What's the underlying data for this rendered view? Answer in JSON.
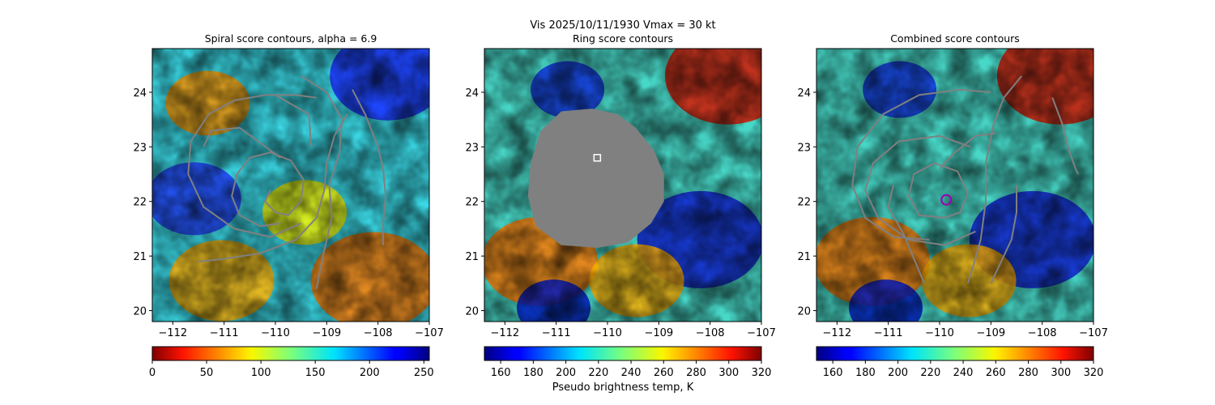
{
  "figure": {
    "suptitle": "Vis  2025/10/11/1930    Vmax = 30 kt"
  },
  "chart_data": [
    {
      "type": "heatmap",
      "title": "Spiral score contours, alpha =  6.9",
      "xlim": [
        -112.4,
        -107.0
      ],
      "ylim": [
        19.8,
        24.8
      ],
      "xticks": [
        -112,
        -111,
        -110,
        -109,
        -108,
        -107
      ],
      "yticks": [
        20,
        21,
        22,
        23,
        24
      ],
      "xtick_labels": [
        "−112",
        "−111",
        "−110",
        "−109",
        "−108",
        "−107"
      ],
      "ytick_labels": [
        "20",
        "21",
        "22",
        "23",
        "24"
      ],
      "colorbar": {
        "cmap": "jet_r",
        "range": [
          0,
          255
        ],
        "ticks": [
          0,
          50,
          100,
          150,
          200,
          250
        ],
        "tick_labels": [
          "0",
          "50",
          "100",
          "150",
          "200",
          "250"
        ],
        "label": ""
      },
      "contour_color": "#808080",
      "contours": [
        [
          [
            -109.9,
            21.6
          ],
          [
            -110.3,
            21.55
          ],
          [
            -110.7,
            21.75
          ],
          [
            -110.85,
            22.1
          ],
          [
            -110.75,
            22.5
          ],
          [
            -110.5,
            22.8
          ],
          [
            -110.1,
            22.9
          ],
          [
            -109.7,
            22.75
          ],
          [
            -109.45,
            22.4
          ],
          [
            -109.5,
            22.0
          ],
          [
            -109.75,
            21.75
          ],
          [
            -110.0,
            21.8
          ],
          [
            -110.2,
            22.0
          ],
          [
            -110.1,
            22.2
          ]
        ],
        [
          [
            -109.2,
            23.9
          ],
          [
            -109.6,
            23.95
          ],
          [
            -110.2,
            23.95
          ],
          [
            -110.8,
            23.85
          ],
          [
            -111.3,
            23.6
          ],
          [
            -111.65,
            23.1
          ],
          [
            -111.7,
            22.5
          ],
          [
            -111.4,
            21.9
          ],
          [
            -110.8,
            21.5
          ],
          [
            -110.1,
            21.35
          ],
          [
            -109.5,
            21.6
          ]
        ],
        [
          [
            -108.6,
            23.6
          ],
          [
            -108.85,
            23.2
          ],
          [
            -109.0,
            22.7
          ],
          [
            -109.05,
            22.2
          ],
          [
            -109.2,
            21.7
          ],
          [
            -109.6,
            21.3
          ],
          [
            -110.3,
            21.05
          ],
          [
            -111.0,
            20.95
          ],
          [
            -111.5,
            20.9
          ]
        ],
        [
          [
            -109.9,
            22.8
          ],
          [
            -110.7,
            23.35
          ],
          [
            -111.25,
            23.3
          ],
          [
            -111.4,
            23.0
          ]
        ],
        [
          [
            -109.3,
            23.0
          ],
          [
            -109.35,
            23.6
          ],
          [
            -110.0,
            23.95
          ]
        ],
        [
          [
            -109.5,
            24.3
          ],
          [
            -109.0,
            24.0
          ],
          [
            -108.7,
            23.5
          ],
          [
            -108.75,
            22.9
          ],
          [
            -108.95,
            22.3
          ],
          [
            -108.9,
            21.7
          ],
          [
            -109.05,
            21.1
          ],
          [
            -109.2,
            20.4
          ]
        ],
        [
          [
            -108.5,
            24.05
          ],
          [
            -108.25,
            23.6
          ],
          [
            -108.0,
            23.0
          ],
          [
            -107.9,
            22.6
          ],
          [
            -107.85,
            22.1
          ],
          [
            -107.9,
            21.6
          ],
          [
            -107.9,
            21.2
          ]
        ]
      ]
    },
    {
      "type": "heatmap",
      "title": "Ring score contours",
      "xlim": [
        -112.4,
        -107.0
      ],
      "ylim": [
        19.8,
        24.8
      ],
      "xticks": [
        -112,
        -111,
        -110,
        -109,
        -108,
        -107
      ],
      "yticks": [
        20,
        21,
        22,
        23,
        24
      ],
      "xtick_labels": [
        "−112",
        "−111",
        "−110",
        "−109",
        "−108",
        "−107"
      ],
      "ytick_labels": [
        "20",
        "21",
        "22",
        "23",
        "24"
      ],
      "colorbar": {
        "cmap": "jet",
        "range": [
          150,
          320
        ],
        "ticks": [
          160,
          180,
          200,
          220,
          240,
          260,
          280,
          300,
          320
        ],
        "tick_labels": [
          "160",
          "180",
          "200",
          "220",
          "240",
          "260",
          "280",
          "300",
          "320"
        ],
        "label": "Pseudo brightness temp, K"
      },
      "masked_region_color": "#808080",
      "masked_region": [
        [
          -110.9,
          23.65
        ],
        [
          -110.3,
          23.7
        ],
        [
          -109.8,
          23.6
        ],
        [
          -109.45,
          23.35
        ],
        [
          -109.1,
          22.95
        ],
        [
          -108.9,
          22.5
        ],
        [
          -108.9,
          22.0
        ],
        [
          -109.15,
          21.6
        ],
        [
          -109.6,
          21.25
        ],
        [
          -110.2,
          21.15
        ],
        [
          -110.9,
          21.2
        ],
        [
          -111.4,
          21.55
        ],
        [
          -111.55,
          22.1
        ],
        [
          -111.5,
          22.7
        ],
        [
          -111.3,
          23.3
        ]
      ],
      "marker": {
        "shape": "square",
        "x": -110.2,
        "y": 22.8,
        "color": "#ffffff"
      }
    },
    {
      "type": "heatmap",
      "title": "Combined score contours",
      "xlim": [
        -112.4,
        -107.0
      ],
      "ylim": [
        19.8,
        24.8
      ],
      "xticks": [
        -112,
        -111,
        -110,
        -109,
        -108,
        -107
      ],
      "yticks": [
        20,
        21,
        22,
        23,
        24
      ],
      "xtick_labels": [
        "−112",
        "−111",
        "−110",
        "−109",
        "−108",
        "−107"
      ],
      "ytick_labels": [
        "20",
        "21",
        "22",
        "23",
        "24"
      ],
      "colorbar": {
        "cmap": "jet",
        "range": [
          150,
          320
        ],
        "ticks": [
          160,
          180,
          200,
          220,
          240,
          260,
          280,
          300,
          320
        ],
        "tick_labels": [
          "160",
          "180",
          "200",
          "220",
          "240",
          "260",
          "280",
          "300",
          "320"
        ],
        "label": ""
      },
      "contour_color": "#808080",
      "contours": [
        [
          [
            -109.9,
            21.7
          ],
          [
            -110.4,
            21.75
          ],
          [
            -110.6,
            22.1
          ],
          [
            -110.5,
            22.5
          ],
          [
            -110.1,
            22.7
          ],
          [
            -109.65,
            22.55
          ],
          [
            -109.45,
            22.15
          ],
          [
            -109.6,
            21.8
          ],
          [
            -109.9,
            21.7
          ]
        ],
        [
          [
            -109.4,
            23.0
          ],
          [
            -110.0,
            23.2
          ],
          [
            -110.8,
            23.1
          ],
          [
            -111.3,
            22.7
          ],
          [
            -111.45,
            22.2
          ],
          [
            -111.2,
            21.7
          ],
          [
            -110.6,
            21.3
          ],
          [
            -109.9,
            21.2
          ],
          [
            -109.3,
            21.45
          ]
        ],
        [
          [
            -109.0,
            24.0
          ],
          [
            -109.6,
            24.05
          ],
          [
            -110.4,
            23.95
          ],
          [
            -111.1,
            23.6
          ],
          [
            -111.6,
            23.0
          ],
          [
            -111.7,
            22.3
          ],
          [
            -111.45,
            21.7
          ],
          [
            -110.9,
            21.35
          ],
          [
            -110.2,
            21.3
          ]
        ],
        [
          [
            -108.4,
            24.3
          ],
          [
            -108.75,
            23.9
          ],
          [
            -108.95,
            23.4
          ],
          [
            -109.1,
            22.7
          ],
          [
            -109.1,
            22.0
          ],
          [
            -109.2,
            21.3
          ],
          [
            -109.35,
            20.8
          ],
          [
            -109.45,
            20.5
          ]
        ],
        [
          [
            -107.8,
            23.9
          ],
          [
            -107.6,
            23.4
          ],
          [
            -107.5,
            23.0
          ],
          [
            -107.35,
            22.6
          ],
          [
            -107.3,
            22.5
          ]
        ],
        [
          [
            -108.5,
            22.3
          ],
          [
            -108.5,
            21.8
          ],
          [
            -108.6,
            21.3
          ],
          [
            -108.8,
            20.9
          ],
          [
            -109.0,
            20.5
          ]
        ],
        [
          [
            -110.0,
            22.6
          ],
          [
            -109.7,
            22.9
          ],
          [
            -109.3,
            23.2
          ],
          [
            -108.9,
            23.25
          ]
        ],
        [
          [
            -110.9,
            22.3
          ],
          [
            -111.0,
            21.9
          ],
          [
            -110.7,
            21.4
          ],
          [
            -110.3,
            20.5
          ]
        ]
      ],
      "marker": {
        "shape": "circle",
        "x": -109.87,
        "y": 22.03,
        "color": "#9b00b4"
      }
    }
  ]
}
